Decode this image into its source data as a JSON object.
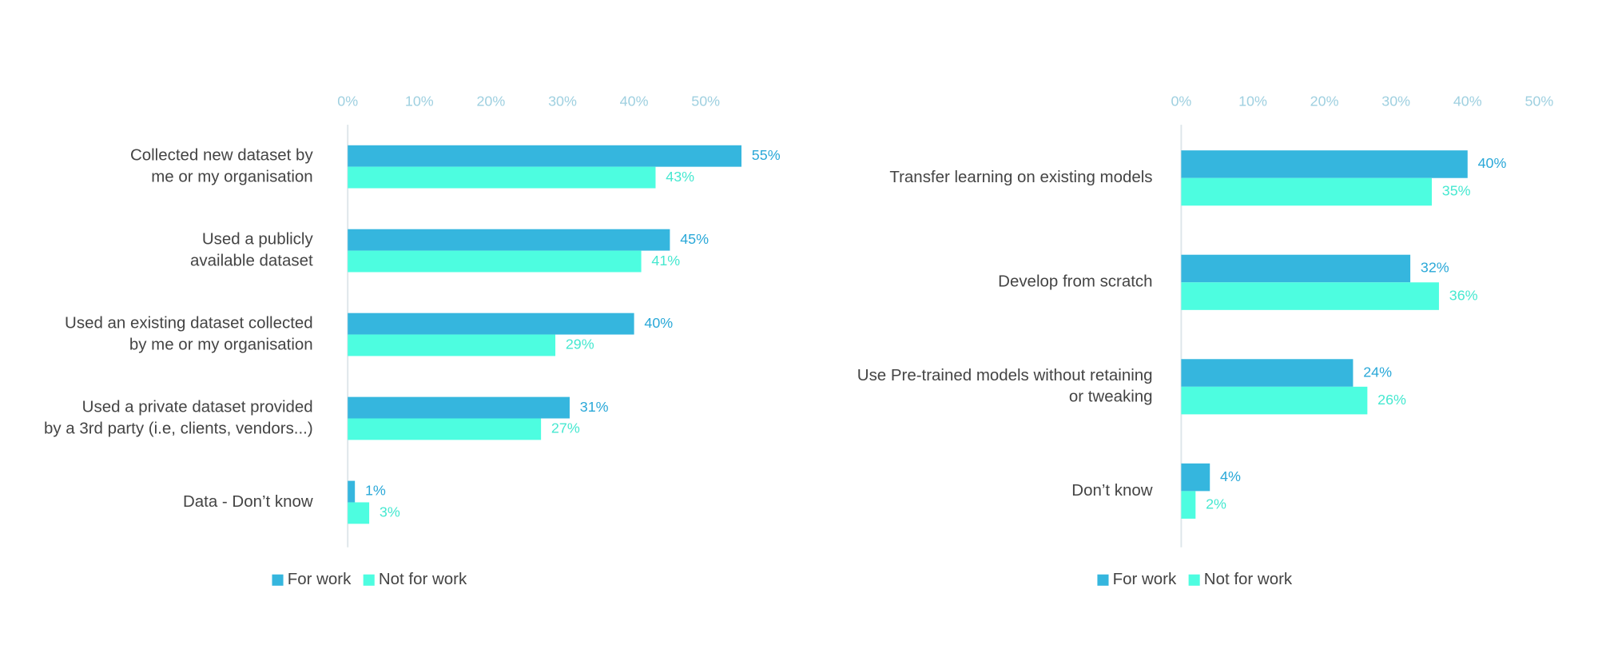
{
  "chart_data": [
    {
      "type": "bar",
      "orientation": "horizontal",
      "categories": [
        [
          "Collected new dataset by",
          "me or my organisation"
        ],
        [
          "Used a publicly",
          "available dataset"
        ],
        [
          "Used an existing dataset collected",
          "by me or my organisation"
        ],
        [
          "Used a private dataset provided",
          "by a 3rd party (i.e, clients, vendors...)"
        ],
        [
          "Data - Don’t know"
        ]
      ],
      "series": [
        {
          "name": "For work",
          "color": "#35b6de",
          "values": [
            55,
            45,
            40,
            31,
            1
          ],
          "value_labels": [
            "55%",
            "45%",
            "40%",
            "31%",
            "1%"
          ]
        },
        {
          "name": "Not for work",
          "color": "#4dfde0",
          "values": [
            43,
            41,
            29,
            27,
            3
          ],
          "value_labels": [
            "43%",
            "41%",
            "29%",
            "27%",
            "3%"
          ]
        }
      ],
      "xlim": [
        0,
        50
      ],
      "xticks": [
        {
          "value": 0,
          "label": "0%"
        },
        {
          "value": 10,
          "label": "10%"
        },
        {
          "value": 20,
          "label": "20%"
        },
        {
          "value": 30,
          "label": "30%"
        },
        {
          "value": 40,
          "label": "40%"
        },
        {
          "value": 50,
          "label": "50%"
        }
      ],
      "legend": "bottom"
    },
    {
      "type": "bar",
      "orientation": "horizontal",
      "categories": [
        [
          "Transfer learning on existing models"
        ],
        [
          "Develop from scratch"
        ],
        [
          "Use Pre-trained models without retaining",
          "or tweaking"
        ],
        [
          "Don’t know"
        ]
      ],
      "series": [
        {
          "name": "For work",
          "color": "#35b6de",
          "values": [
            40,
            32,
            24,
            4
          ],
          "value_labels": [
            "40%",
            "32%",
            "24%",
            "4%"
          ]
        },
        {
          "name": "Not for work",
          "color": "#4dfde0",
          "values": [
            35,
            36,
            26,
            2
          ],
          "value_labels": [
            "35%",
            "36%",
            "26%",
            "2%"
          ]
        }
      ],
      "xlim": [
        0,
        50
      ],
      "xticks": [
        {
          "value": 0,
          "label": "0%"
        },
        {
          "value": 10,
          "label": "10%"
        },
        {
          "value": 20,
          "label": "20%"
        },
        {
          "value": 30,
          "label": "30%"
        },
        {
          "value": 40,
          "label": "40%"
        },
        {
          "value": 50,
          "label": "50%"
        }
      ],
      "legend": "bottom"
    }
  ]
}
